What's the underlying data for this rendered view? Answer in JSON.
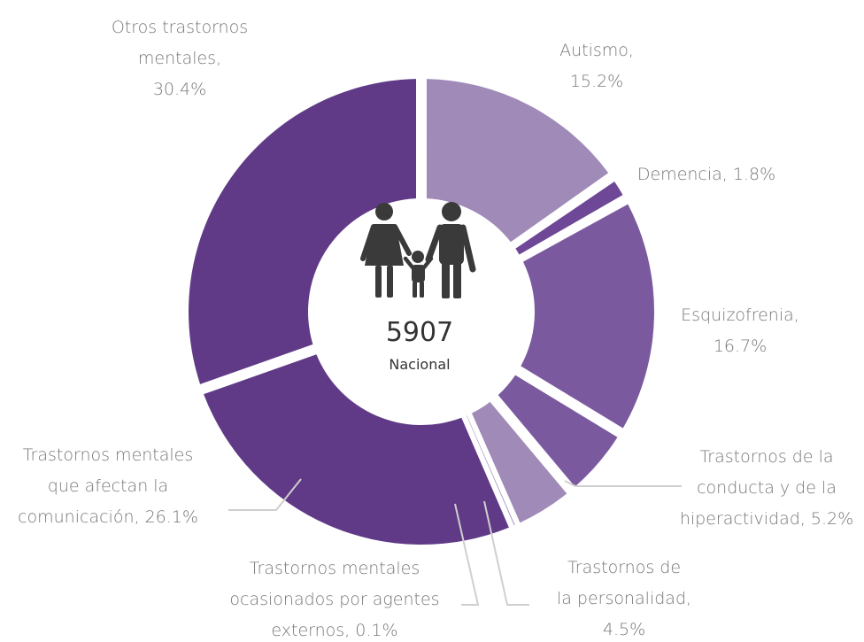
{
  "chart_data": {
    "type": "pie",
    "subtype": "donut",
    "center_total": "5907",
    "center_label": "Nacional",
    "center_icon": "family-icon",
    "slices": [
      {
        "name": "Autismo",
        "value": 15.2,
        "label": [
          "Autismo,",
          "15.2%"
        ],
        "color": "#a08ab8"
      },
      {
        "name": "Demencia",
        "value": 1.8,
        "label": [
          "Demencia, 1.8%"
        ],
        "color": "#6e4796"
      },
      {
        "name": "Esquizofrenia",
        "value": 16.7,
        "label": [
          "Esquizofrenia,",
          "16.7%"
        ],
        "color": "#7b599f"
      },
      {
        "name": "Trastornos de la conducta y de la hiperactividad",
        "value": 5.2,
        "label": [
          "Trastornos de la",
          "conducta y de la",
          "hiperactividad, 5.2%"
        ],
        "color": "#7b599f"
      },
      {
        "name": "Trastornos de la personalidad",
        "value": 4.5,
        "label": [
          "Trastornos de",
          "la personalidad,",
          "4.5%"
        ],
        "color": "#a08ab8"
      },
      {
        "name": "Trastornos mentales ocasionados por agentes externos",
        "value": 0.1,
        "label": [
          "Trastornos mentales",
          "ocasionados por agentes",
          "externos, 0.1%"
        ],
        "color": "#a08ab8"
      },
      {
        "name": "Trastornos mentales que afectan la comunicación",
        "value": 26.1,
        "label": [
          "Trastornos mentales",
          "que afectan la",
          "comunicación, 26.1%"
        ],
        "color": "#603a87"
      },
      {
        "name": "Otros trastornos mentales",
        "value": 30.4,
        "label": [
          "Otros trastornos",
          "mentales,",
          "30.4%"
        ],
        "color": "#603a87"
      }
    ]
  }
}
